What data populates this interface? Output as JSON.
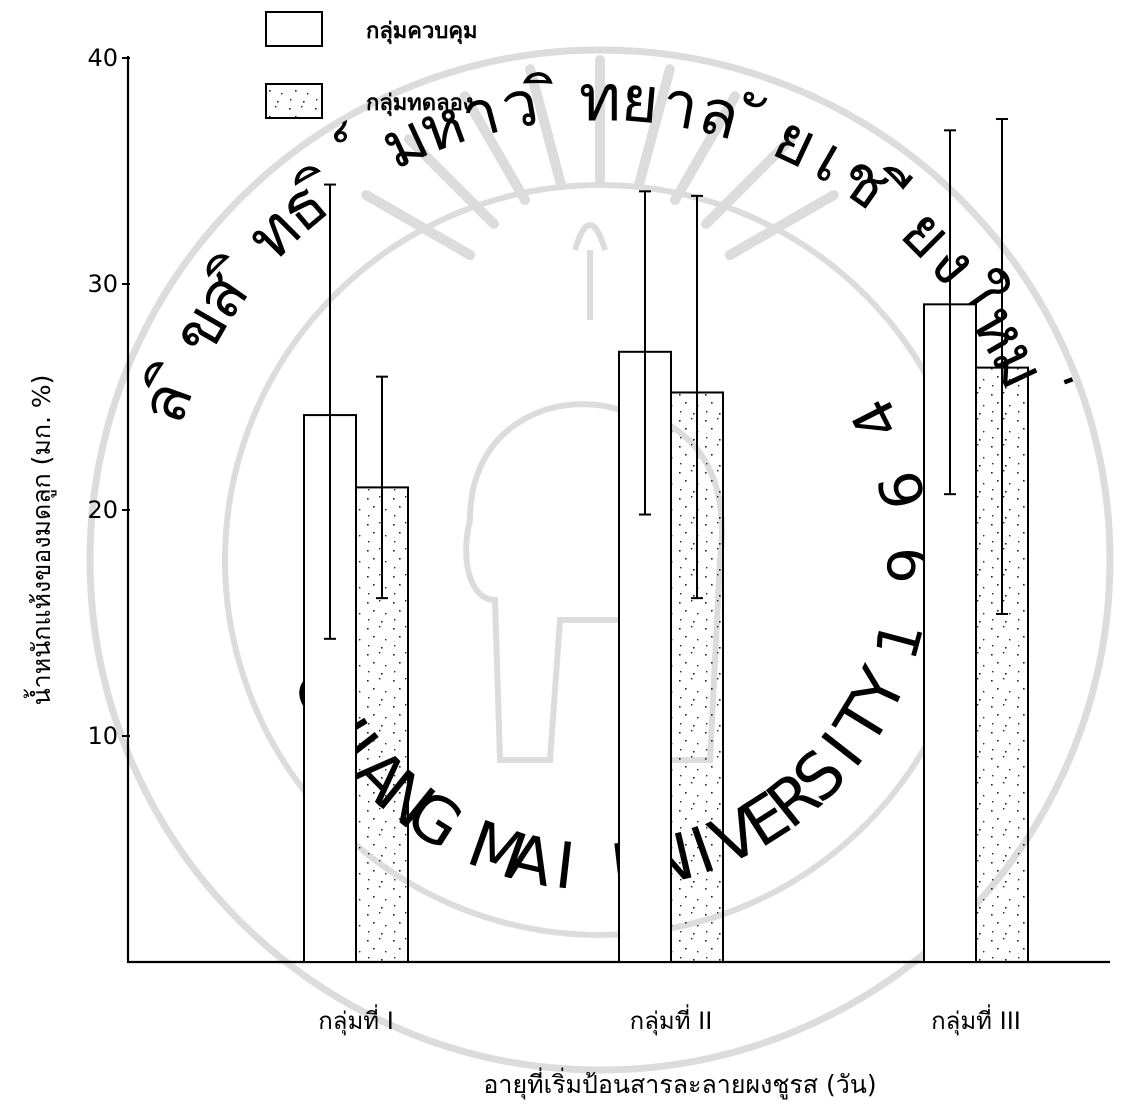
{
  "chart_data": {
    "type": "bar",
    "categories": [
      "กลุ่มที่ I",
      "กลุ่มที่ II",
      "กลุ่มที่ III"
    ],
    "series": [
      {
        "name": "กลุ่มควบคุม",
        "values": [
          24.2,
          27.0,
          29.1
        ],
        "error_low": [
          14.3,
          19.8,
          20.7
        ],
        "error_high": [
          34.4,
          34.1,
          36.8
        ],
        "fill": "none"
      },
      {
        "name": "กลุ่มทดลอง",
        "values": [
          21.0,
          25.2,
          26.3
        ],
        "error_low": [
          16.1,
          16.1,
          15.4
        ],
        "error_high": [
          25.9,
          33.9,
          37.3
        ],
        "fill": "stippled"
      }
    ],
    "xlabel": "อายุที่เริ่มป้อนสารละลายผงชูรส (วัน)",
    "ylabel": "น้ำหนักแห้งของมดลูก (มก. %)",
    "yticks": [
      10,
      20,
      30,
      40
    ],
    "ylim": [
      0,
      40
    ],
    "grid": false,
    "legend_position": "top-left"
  },
  "watermark": {
    "top_text": "ลิขสิทธิ์มหาวิทยาลัยเชียงใหม่",
    "bottom_text": "CHIANG MAI UNIVERSITY",
    "year": "1964"
  },
  "colors": {
    "ink": "#000000",
    "watermark": "#dcdcdc",
    "background": "#ffffff"
  }
}
